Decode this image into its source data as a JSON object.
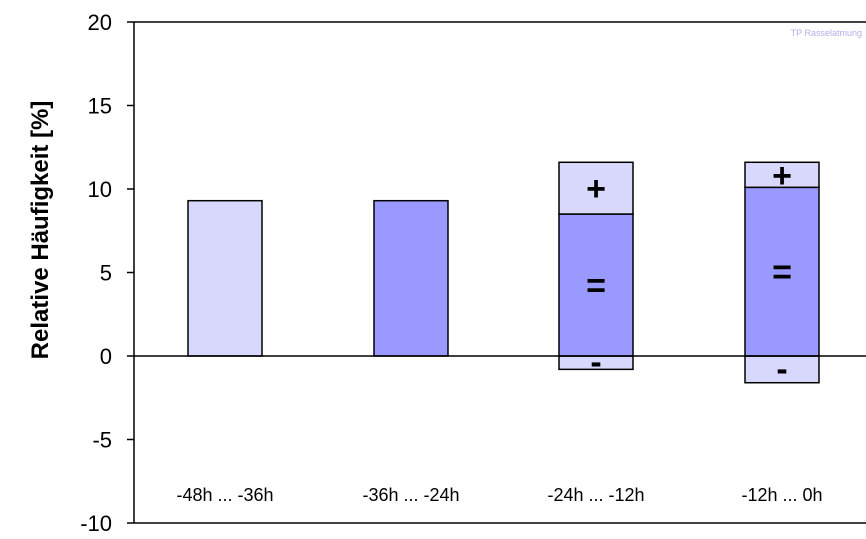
{
  "chart_data": {
    "type": "bar",
    "ylabel": "Relative Häufigkeit [%]",
    "ylim": [
      -10,
      20
    ],
    "yticks": [
      -10,
      -5,
      0,
      5,
      10,
      15,
      20
    ],
    "watermark": "TP Rasselatmung",
    "grid": false,
    "categories": [
      "-48h ... -36h",
      "-36h ... -24h",
      "-24h ... -12h",
      "-12h ... 0h"
    ],
    "bars": [
      {
        "category": "-48h ... -36h",
        "segments": [
          {
            "from": 0,
            "to": 9.3,
            "color": "#d8d8fc"
          }
        ]
      },
      {
        "category": "-36h ... -24h",
        "segments": [
          {
            "from": 0,
            "to": 9.3,
            "color": "#9999ff"
          }
        ]
      },
      {
        "category": "-24h ... -12h",
        "segments": [
          {
            "from": -0.8,
            "to": 0,
            "label": "-",
            "color": "#d8d8fc"
          },
          {
            "from": 0,
            "to": 8.5,
            "label": "=",
            "color": "#9999ff"
          },
          {
            "from": 8.5,
            "to": 11.6,
            "label": "+",
            "color": "#d8d8fc"
          }
        ]
      },
      {
        "category": "-12h ... 0h",
        "segments": [
          {
            "from": -1.6,
            "to": 0,
            "label": "-",
            "color": "#d8d8fc"
          },
          {
            "from": 0,
            "to": 10.1,
            "label": "=",
            "color": "#9999ff"
          },
          {
            "from": 10.1,
            "to": 11.6,
            "label": "+",
            "color": "#d8d8fc"
          }
        ]
      }
    ],
    "colors": {
      "light": "#d8d8fc",
      "dark": "#9999ff",
      "watermark": "#b0b0f0"
    }
  }
}
